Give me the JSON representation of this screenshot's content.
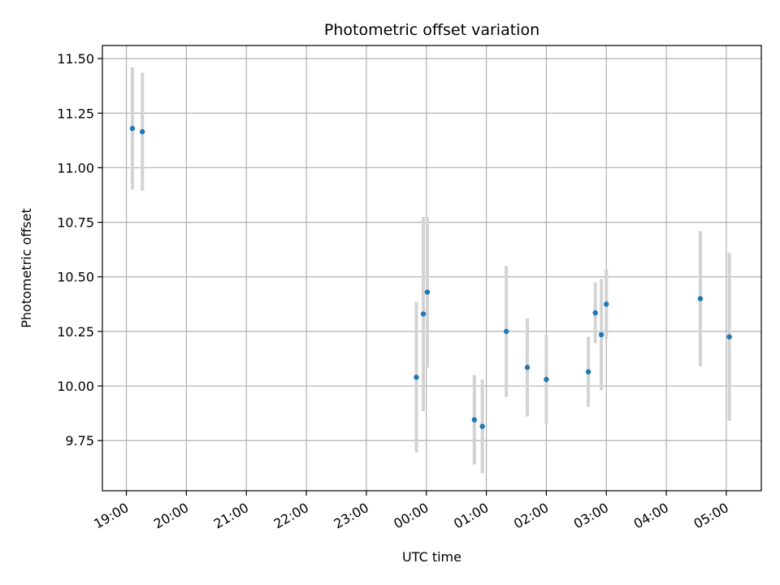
{
  "chart_data": {
    "type": "scatter",
    "title": "Photometric offset variation",
    "xlabel": "UTC time",
    "ylabel": "Photometric offset",
    "xlim": [
      "18:36",
      "05:35"
    ],
    "ylim": [
      9.52,
      11.56
    ],
    "xticks": [
      "19:00",
      "20:00",
      "21:00",
      "22:00",
      "23:00",
      "00:00",
      "01:00",
      "02:00",
      "03:00",
      "04:00",
      "05:00"
    ],
    "yticks": [
      "9.75",
      "10.00",
      "10.25",
      "10.50",
      "10.75",
      "11.00",
      "11.25",
      "11.50"
    ],
    "grid": true,
    "colors": {
      "points": "#1f77b4",
      "errorbars": "#d3d3d3",
      "grid": "#b0b0b0"
    },
    "points": [
      {
        "x": "19:06",
        "y": 11.18,
        "yerr": 0.28
      },
      {
        "x": "19:16",
        "y": 11.165,
        "yerr": 0.27
      },
      {
        "x": "23:50",
        "y": 10.04,
        "yerr": 0.345
      },
      {
        "x": "23:57",
        "y": 10.33,
        "yerr": 0.445
      },
      {
        "x": "00:01",
        "y": 10.43,
        "yerr": 0.345
      },
      {
        "x": "00:48",
        "y": 9.845,
        "yerr": 0.205
      },
      {
        "x": "00:56",
        "y": 9.815,
        "yerr": 0.215
      },
      {
        "x": "01:20",
        "y": 10.25,
        "yerr": 0.3
      },
      {
        "x": "01:41",
        "y": 10.085,
        "yerr": 0.225
      },
      {
        "x": "02:00",
        "y": 10.03,
        "yerr": 0.205
      },
      {
        "x": "02:42",
        "y": 10.065,
        "yerr": 0.16
      },
      {
        "x": "02:49",
        "y": 10.335,
        "yerr": 0.14
      },
      {
        "x": "02:55",
        "y": 10.235,
        "yerr": 0.255
      },
      {
        "x": "03:00",
        "y": 10.375,
        "yerr": 0.16
      },
      {
        "x": "04:34",
        "y": 10.4,
        "yerr": 0.31
      },
      {
        "x": "05:03",
        "y": 10.225,
        "yerr": 0.385
      }
    ]
  }
}
